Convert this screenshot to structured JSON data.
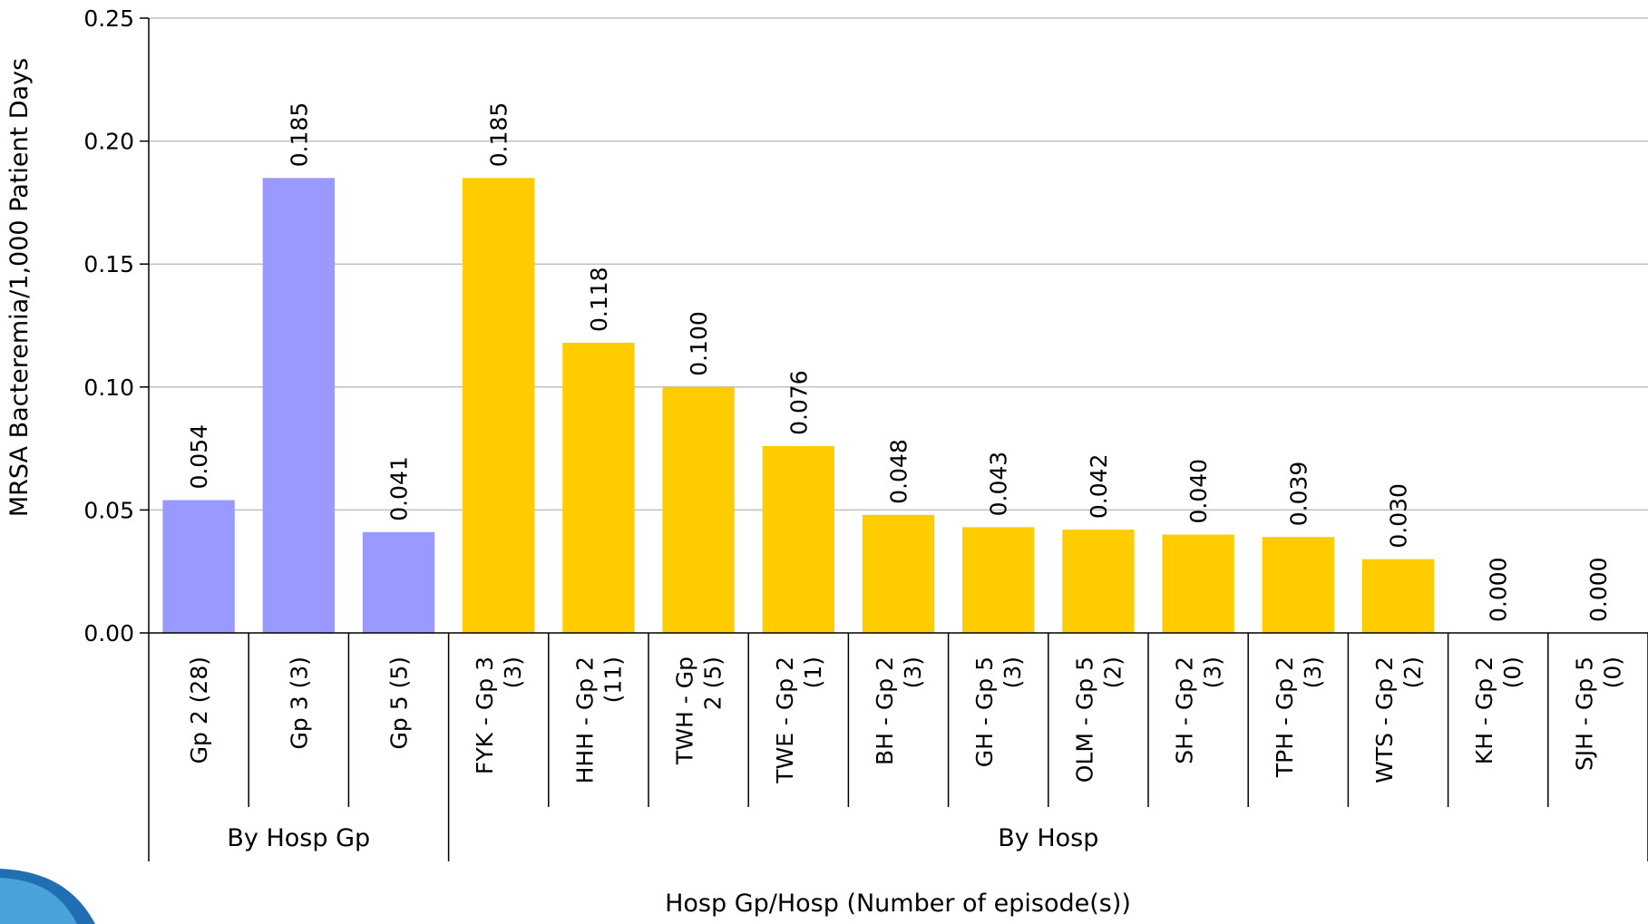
{
  "chart_data": {
    "type": "bar",
    "ylabel": "MRSA Bacteremia/1,000 Patient Days",
    "xlabel": "Hosp Gp/Hosp (Number of episode(s))",
    "ylim": [
      0,
      0.25
    ],
    "yticks": [
      "0.00",
      "0.05",
      "0.10",
      "0.15",
      "0.20",
      "0.25"
    ],
    "grid": true,
    "categories": [
      {
        "label": [
          "Gp 2 (28)"
        ],
        "group": 0,
        "value": 0.054,
        "value_label": "0.054",
        "color": "#9999ff"
      },
      {
        "label": [
          "Gp 3 (3)"
        ],
        "group": 0,
        "value": 0.185,
        "value_label": "0.185",
        "color": "#9999ff"
      },
      {
        "label": [
          "Gp 5 (5)"
        ],
        "group": 0,
        "value": 0.041,
        "value_label": "0.041",
        "color": "#9999ff"
      },
      {
        "label": [
          "FYK - Gp 3",
          "(3)"
        ],
        "group": 1,
        "value": 0.185,
        "value_label": "0.185",
        "color": "#ffcc00"
      },
      {
        "label": [
          "HHH - Gp 2",
          "(11)"
        ],
        "group": 1,
        "value": 0.118,
        "value_label": "0.118",
        "color": "#ffcc00"
      },
      {
        "label": [
          "TWH - Gp",
          "2 (5)"
        ],
        "group": 1,
        "value": 0.1,
        "value_label": "0.100",
        "color": "#ffcc00"
      },
      {
        "label": [
          "TWE - Gp 2",
          "(1)"
        ],
        "group": 1,
        "value": 0.076,
        "value_label": "0.076",
        "color": "#ffcc00"
      },
      {
        "label": [
          "BH - Gp 2",
          "(3)"
        ],
        "group": 1,
        "value": 0.048,
        "value_label": "0.048",
        "color": "#ffcc00"
      },
      {
        "label": [
          "GH - Gp 5",
          "(3)"
        ],
        "group": 1,
        "value": 0.043,
        "value_label": "0.043",
        "color": "#ffcc00"
      },
      {
        "label": [
          "OLM - Gp 5",
          "(2)"
        ],
        "group": 1,
        "value": 0.042,
        "value_label": "0.042",
        "color": "#ffcc00"
      },
      {
        "label": [
          "SH - Gp 2",
          "(3)"
        ],
        "group": 1,
        "value": 0.04,
        "value_label": "0.040",
        "color": "#ffcc00"
      },
      {
        "label": [
          "TPH - Gp 2",
          "(3)"
        ],
        "group": 1,
        "value": 0.039,
        "value_label": "0.039",
        "color": "#ffcc00"
      },
      {
        "label": [
          "WTS - Gp 2",
          "(2)"
        ],
        "group": 1,
        "value": 0.03,
        "value_label": "0.030",
        "color": "#ffcc00"
      },
      {
        "label": [
          "KH - Gp 2",
          "(0)"
        ],
        "group": 1,
        "value": 0.0,
        "value_label": "0.000",
        "color": "#ffcc00"
      },
      {
        "label": [
          "SJH - Gp 5",
          "(0)"
        ],
        "group": 1,
        "value": 0.0,
        "value_label": "0.000",
        "color": "#ffcc00"
      }
    ],
    "groups": [
      "By Hosp Gp",
      "By Hosp"
    ]
  }
}
